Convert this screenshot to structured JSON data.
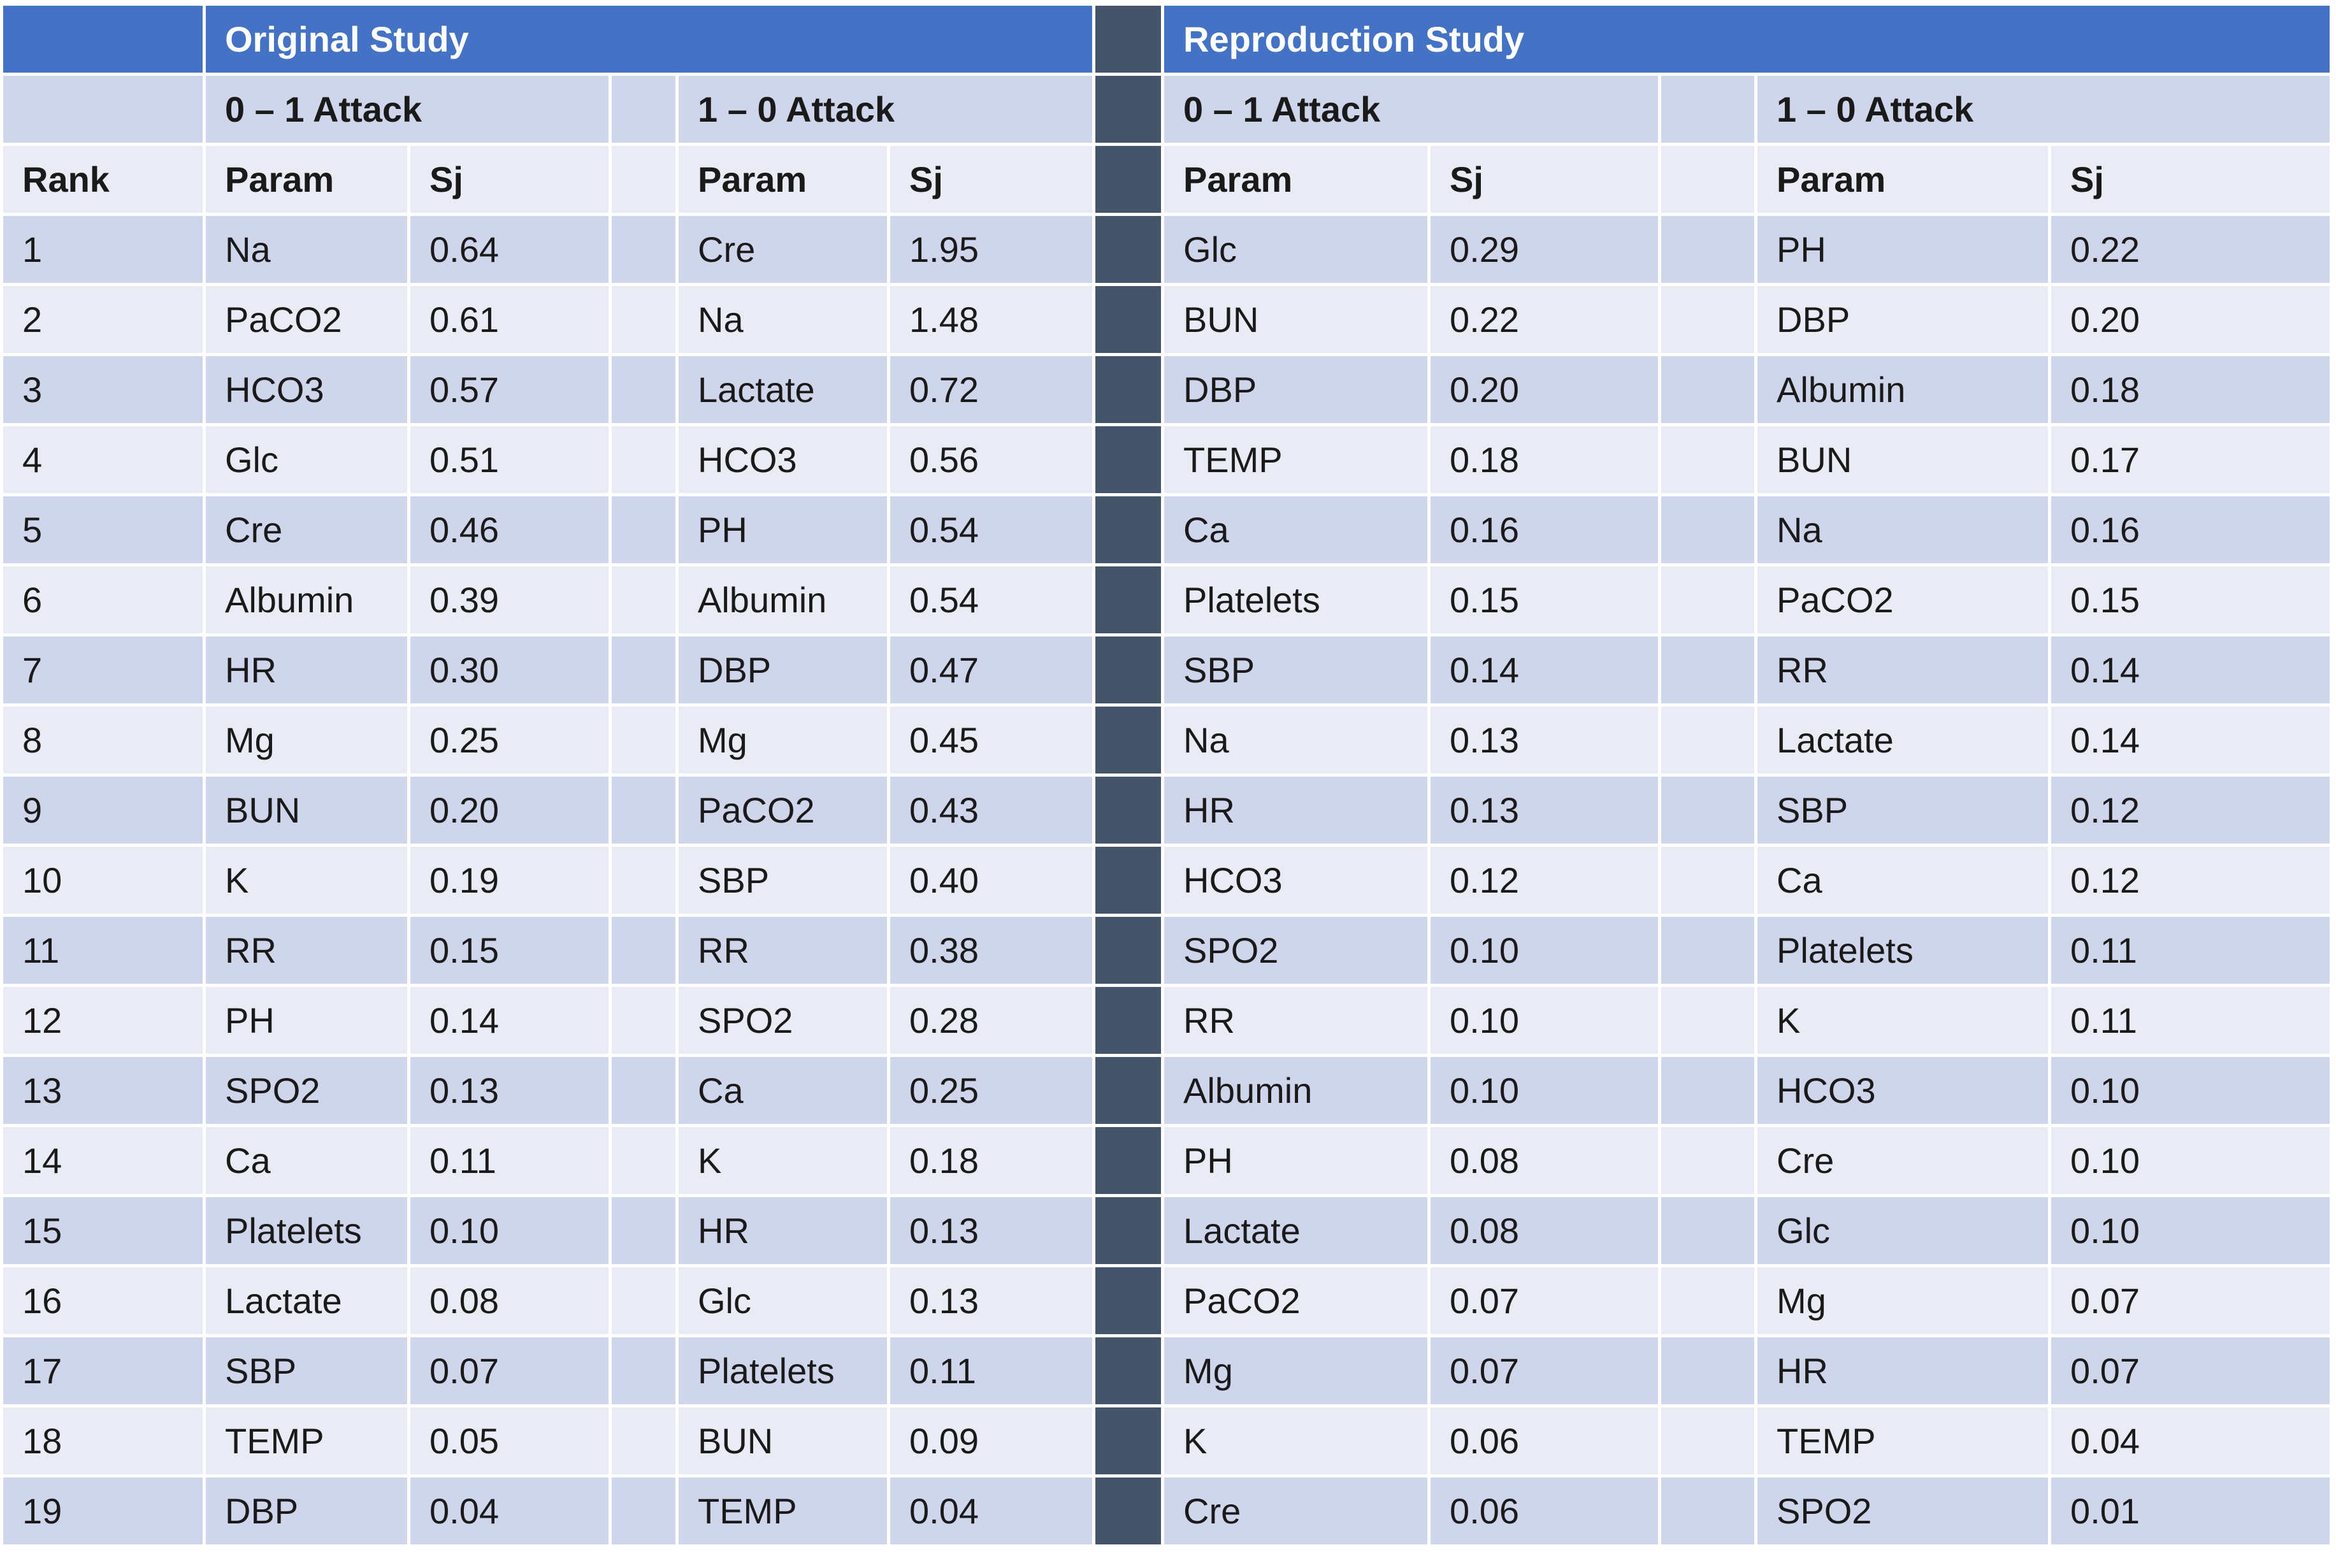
{
  "studies": {
    "original": "Original Study",
    "reproduction": "Reproduction Study"
  },
  "attacks": {
    "orig_01": "0 – 1 Attack",
    "orig_10": "1 – 0 Attack",
    "repro_01": "0 – 1 Attack",
    "repro_10": "1 – 0 Attack"
  },
  "columns": {
    "rank": "Rank",
    "param": "Param",
    "sj": "Sj"
  },
  "rows": [
    {
      "rank": "1",
      "o01p": "Na",
      "o01s": "0.64",
      "o10p": "Cre",
      "o10s": "1.95",
      "r01p": "Glc",
      "r01s": "0.29",
      "r10p": "PH",
      "r10s": "0.22"
    },
    {
      "rank": "2",
      "o01p": "PaCO2",
      "o01s": "0.61",
      "o10p": "Na",
      "o10s": "1.48",
      "r01p": "BUN",
      "r01s": "0.22",
      "r10p": "DBP",
      "r10s": "0.20"
    },
    {
      "rank": "3",
      "o01p": "HCO3",
      "o01s": "0.57",
      "o10p": "Lactate",
      "o10s": "0.72",
      "r01p": "DBP",
      "r01s": "0.20",
      "r10p": "Albumin",
      "r10s": "0.18"
    },
    {
      "rank": "4",
      "o01p": "Glc",
      "o01s": "0.51",
      "o10p": "HCO3",
      "o10s": "0.56",
      "r01p": "TEMP",
      "r01s": "0.18",
      "r10p": "BUN",
      "r10s": "0.17"
    },
    {
      "rank": "5",
      "o01p": "Cre",
      "o01s": "0.46",
      "o10p": "PH",
      "o10s": "0.54",
      "r01p": "Ca",
      "r01s": "0.16",
      "r10p": "Na",
      "r10s": "0.16"
    },
    {
      "rank": "6",
      "o01p": "Albumin",
      "o01s": "0.39",
      "o10p": "Albumin",
      "o10s": "0.54",
      "r01p": "Platelets",
      "r01s": "0.15",
      "r10p": "PaCO2",
      "r10s": "0.15"
    },
    {
      "rank": "7",
      "o01p": "HR",
      "o01s": "0.30",
      "o10p": "DBP",
      "o10s": "0.47",
      "r01p": "SBP",
      "r01s": "0.14",
      "r10p": "RR",
      "r10s": "0.14"
    },
    {
      "rank": "8",
      "o01p": "Mg",
      "o01s": "0.25",
      "o10p": "Mg",
      "o10s": "0.45",
      "r01p": "Na",
      "r01s": "0.13",
      "r10p": "Lactate",
      "r10s": "0.14"
    },
    {
      "rank": "9",
      "o01p": "BUN",
      "o01s": "0.20",
      "o10p": "PaCO2",
      "o10s": "0.43",
      "r01p": "HR",
      "r01s": "0.13",
      "r10p": "SBP",
      "r10s": "0.12"
    },
    {
      "rank": "10",
      "o01p": "K",
      "o01s": "0.19",
      "o10p": "SBP",
      "o10s": "0.40",
      "r01p": "HCO3",
      "r01s": "0.12",
      "r10p": "Ca",
      "r10s": "0.12"
    },
    {
      "rank": "11",
      "o01p": "RR",
      "o01s": "0.15",
      "o10p": "RR",
      "o10s": "0.38",
      "r01p": "SPO2",
      "r01s": "0.10",
      "r10p": "Platelets",
      "r10s": "0.11"
    },
    {
      "rank": "12",
      "o01p": "PH",
      "o01s": "0.14",
      "o10p": "SPO2",
      "o10s": "0.28",
      "r01p": "RR",
      "r01s": "0.10",
      "r10p": "K",
      "r10s": "0.11"
    },
    {
      "rank": "13",
      "o01p": "SPO2",
      "o01s": "0.13",
      "o10p": "Ca",
      "o10s": "0.25",
      "r01p": "Albumin",
      "r01s": "0.10",
      "r10p": "HCO3",
      "r10s": "0.10"
    },
    {
      "rank": "14",
      "o01p": "Ca",
      "o01s": "0.11",
      "o10p": "K",
      "o10s": "0.18",
      "r01p": "PH",
      "r01s": "0.08",
      "r10p": "Cre",
      "r10s": "0.10"
    },
    {
      "rank": "15",
      "o01p": "Platelets",
      "o01s": "0.10",
      "o10p": "HR",
      "o10s": "0.13",
      "r01p": "Lactate",
      "r01s": "0.08",
      "r10p": "Glc",
      "r10s": "0.10"
    },
    {
      "rank": "16",
      "o01p": "Lactate",
      "o01s": "0.08",
      "o10p": "Glc",
      "o10s": "0.13",
      "r01p": "PaCO2",
      "r01s": "0.07",
      "r10p": "Mg",
      "r10s": "0.07"
    },
    {
      "rank": "17",
      "o01p": "SBP",
      "o01s": "0.07",
      "o10p": "Platelets",
      "o10s": "0.11",
      "r01p": "Mg",
      "r01s": "0.07",
      "r10p": "HR",
      "r10s": "0.07"
    },
    {
      "rank": "18",
      "o01p": "TEMP",
      "o01s": "0.05",
      "o10p": "BUN",
      "o10s": "0.09",
      "r01p": "K",
      "r01s": "0.06",
      "r10p": "TEMP",
      "r10s": "0.04"
    },
    {
      "rank": "19",
      "o01p": "DBP",
      "o01s": "0.04",
      "o10p": "TEMP",
      "o10s": "0.04",
      "r01p": "Cre",
      "r01s": "0.06",
      "r10p": "SPO2",
      "r10s": "0.01"
    }
  ]
}
